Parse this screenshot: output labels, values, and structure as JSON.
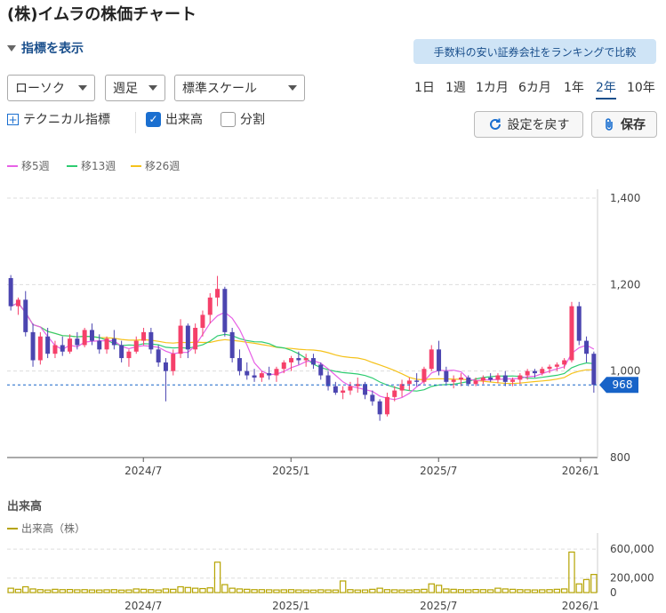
{
  "page": {
    "title": "(株)イムラの株価チャート",
    "indicator_toggle": "指標を表示",
    "promo_button": "手数料の安い証券会社をランキングで比較"
  },
  "controls": {
    "chart_type": "ローソク",
    "interval": "週足",
    "scale": "標準スケール",
    "periods": [
      "1日",
      "1週",
      "1カ月",
      "6カ月",
      "1年",
      "2年",
      "10年"
    ],
    "active_period": "2年",
    "technical_label": "テクニカル指標",
    "volume_checkbox": {
      "label": "出来高",
      "checked": true
    },
    "split_checkbox": {
      "label": "分割",
      "checked": false
    },
    "reset_button": "設定を戻す",
    "save_button": "保存"
  },
  "colors": {
    "up": "#f5406a",
    "down": "#4b45b0",
    "ma5": "#e761e6",
    "ma13": "#2ecc71",
    "ma26": "#f5c21b",
    "volume": "#b5a300",
    "accent": "#1a6fd0",
    "price_label": "#1763c8"
  },
  "chart_data": {
    "type": "candlestick",
    "title": "",
    "interval": "weekly",
    "x_tick_labels": [
      "2024/7",
      "2025/1",
      "2025/7",
      "2026/1"
    ],
    "ylim": [
      800,
      1400
    ],
    "y_ticks": [
      "800",
      "1,000",
      "1,200",
      "1,400"
    ],
    "current_price": "968",
    "grid": true,
    "legend_position": "top-left",
    "series_names": {
      "ma5": "移5週",
      "ma13": "移13週",
      "ma26": "移26週"
    },
    "candles_ohlc": [
      [
        1215,
        1222,
        1140,
        1150
      ],
      [
        1150,
        1170,
        1130,
        1165
      ],
      [
        1165,
        1185,
        1080,
        1090
      ],
      [
        1090,
        1110,
        1010,
        1025
      ],
      [
        1025,
        1090,
        1015,
        1080
      ],
      [
        1080,
        1100,
        1030,
        1040
      ],
      [
        1040,
        1070,
        1030,
        1060
      ],
      [
        1060,
        1080,
        1035,
        1045
      ],
      [
        1045,
        1085,
        1040,
        1075
      ],
      [
        1075,
        1090,
        1050,
        1060
      ],
      [
        1060,
        1100,
        1055,
        1095
      ],
      [
        1095,
        1110,
        1060,
        1070
      ],
      [
        1070,
        1085,
        1040,
        1050
      ],
      [
        1050,
        1080,
        1040,
        1075
      ],
      [
        1075,
        1095,
        1050,
        1060
      ],
      [
        1060,
        1070,
        1020,
        1030
      ],
      [
        1030,
        1050,
        1010,
        1045
      ],
      [
        1045,
        1080,
        1040,
        1070
      ],
      [
        1070,
        1100,
        1060,
        1090
      ],
      [
        1090,
        1100,
        1040,
        1050
      ],
      [
        1050,
        1060,
        1010,
        1020
      ],
      [
        1020,
        1030,
        930,
        1000
      ],
      [
        1000,
        1050,
        990,
        1040
      ],
      [
        1040,
        1120,
        1030,
        1105
      ],
      [
        1105,
        1110,
        1030,
        1050
      ],
      [
        1050,
        1110,
        1040,
        1100
      ],
      [
        1100,
        1140,
        1080,
        1130
      ],
      [
        1130,
        1180,
        1110,
        1170
      ],
      [
        1170,
        1220,
        1150,
        1190
      ],
      [
        1190,
        1195,
        1080,
        1090
      ],
      [
        1090,
        1100,
        1020,
        1030
      ],
      [
        1030,
        1050,
        990,
        1000
      ],
      [
        1000,
        1020,
        980,
        990
      ],
      [
        990,
        1005,
        975,
        985
      ],
      [
        985,
        1000,
        975,
        995
      ],
      [
        995,
        1010,
        980,
        990
      ],
      [
        990,
        1010,
        975,
        1005
      ],
      [
        1005,
        1025,
        995,
        1020
      ],
      [
        1020,
        1035,
        1000,
        1030
      ],
      [
        1030,
        1045,
        1015,
        1025
      ],
      [
        1025,
        1040,
        1010,
        1030
      ],
      [
        1030,
        1040,
        1005,
        1015
      ],
      [
        1015,
        1020,
        980,
        990
      ],
      [
        990,
        1000,
        955,
        965
      ],
      [
        965,
        975,
        945,
        950
      ],
      [
        950,
        965,
        935,
        955
      ],
      [
        955,
        975,
        945,
        965
      ],
      [
        965,
        985,
        950,
        970
      ],
      [
        970,
        975,
        935,
        945
      ],
      [
        945,
        955,
        920,
        930
      ],
      [
        930,
        935,
        885,
        900
      ],
      [
        900,
        950,
        895,
        940
      ],
      [
        940,
        965,
        930,
        955
      ],
      [
        955,
        980,
        940,
        970
      ],
      [
        970,
        985,
        955,
        978
      ],
      [
        978,
        995,
        965,
        975
      ],
      [
        975,
        1010,
        970,
        1005
      ],
      [
        1005,
        1060,
        1000,
        1050
      ],
      [
        1050,
        1070,
        990,
        1000
      ],
      [
        1000,
        1010,
        970,
        975
      ],
      [
        975,
        990,
        960,
        980
      ],
      [
        980,
        995,
        965,
        985
      ],
      [
        985,
        990,
        965,
        970
      ],
      [
        970,
        985,
        965,
        978
      ],
      [
        978,
        990,
        970,
        985
      ],
      [
        985,
        995,
        975,
        980
      ],
      [
        980,
        995,
        972,
        990
      ],
      [
        990,
        1000,
        965,
        975
      ],
      [
        975,
        985,
        965,
        980
      ],
      [
        980,
        995,
        970,
        990
      ],
      [
        990,
        1005,
        980,
        1000
      ],
      [
        1000,
        1005,
        985,
        995
      ],
      [
        995,
        1010,
        990,
        1005
      ],
      [
        1005,
        1015,
        995,
        1010
      ],
      [
        1010,
        1020,
        1000,
        1015
      ],
      [
        1015,
        1030,
        1005,
        1025
      ],
      [
        1025,
        1160,
        1020,
        1150
      ],
      [
        1150,
        1160,
        1060,
        1070
      ],
      [
        1070,
        1080,
        1020,
        1040
      ],
      [
        1040,
        1045,
        950,
        968
      ]
    ],
    "volume": {
      "label": "出来高（株）",
      "ylim": [
        0,
        700000
      ],
      "y_ticks": [
        "0",
        "200,000",
        "600,000"
      ],
      "values": [
        60000,
        45000,
        80000,
        50000,
        40000,
        35000,
        45000,
        40000,
        42000,
        38000,
        40000,
        36000,
        35000,
        38000,
        40000,
        34000,
        36000,
        50000,
        45000,
        40000,
        35000,
        50000,
        45000,
        80000,
        70000,
        60000,
        55000,
        65000,
        420000,
        110000,
        60000,
        50000,
        45000,
        40000,
        40000,
        38000,
        36000,
        38000,
        40000,
        36000,
        35000,
        34000,
        38000,
        36000,
        35000,
        160000,
        40000,
        35000,
        36000,
        45000,
        60000,
        40000,
        38000,
        36000,
        35000,
        40000,
        45000,
        120000,
        100000,
        50000,
        45000,
        40000,
        38000,
        42000,
        40000,
        38000,
        60000,
        50000,
        45000,
        40000,
        38000,
        36000,
        38000,
        40000,
        45000,
        50000,
        560000,
        120000,
        180000,
        250000
      ]
    }
  }
}
